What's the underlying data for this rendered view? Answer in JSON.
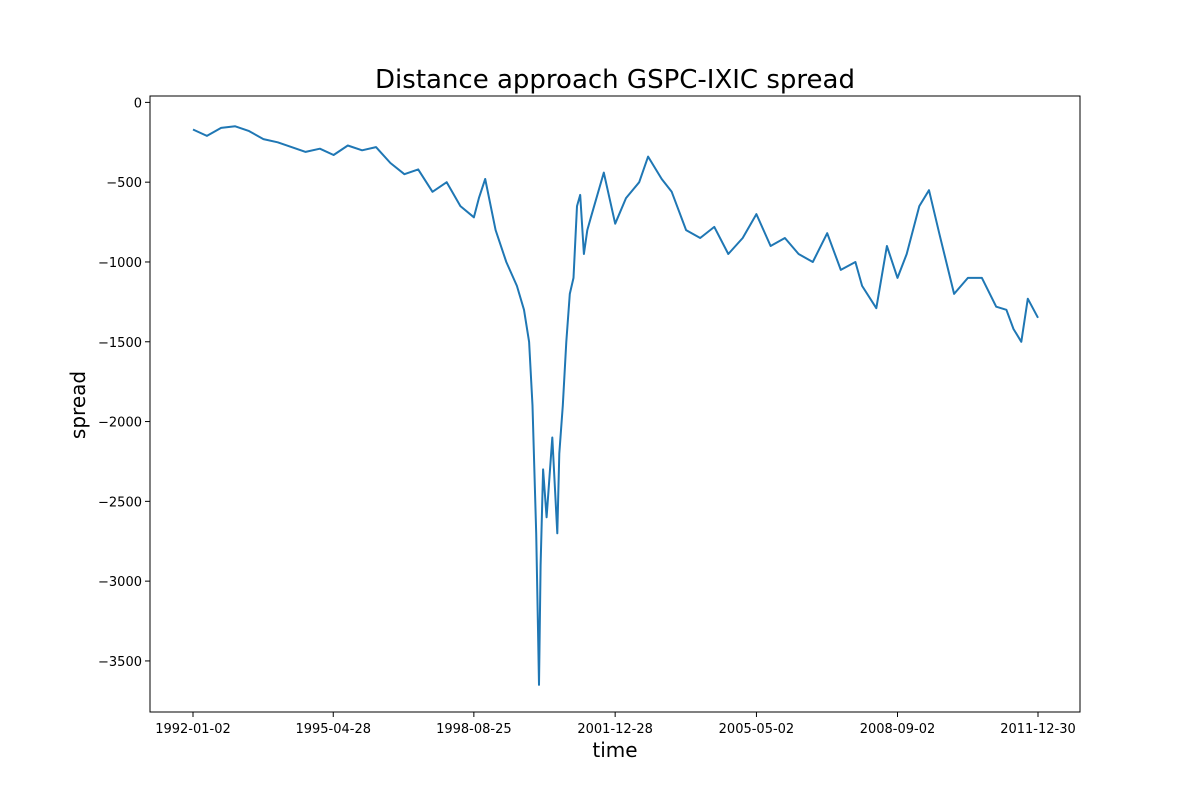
{
  "chart_data": {
    "type": "line",
    "title": "Distance approach GSPC-IXIC spread",
    "xlabel": "time",
    "ylabel": "spread",
    "x_ticks": [
      "1992-01-02",
      "1995-04-28",
      "1998-08-25",
      "2001-12-28",
      "2005-05-02",
      "2008-09-02",
      "2011-12-30"
    ],
    "y_ticks": [
      0,
      -500,
      -1000,
      -1500,
      -2000,
      -2500,
      -3000,
      -3500
    ],
    "y_tick_labels": [
      "0",
      "−500",
      "−1000",
      "−1500",
      "−2000",
      "−2500",
      "−3000",
      "−3500"
    ],
    "xlim": [
      "1992-01-02",
      "2011-12-30"
    ],
    "ylim": [
      -3820,
      40
    ],
    "grid": false,
    "series": [
      {
        "color": "#1f77b4",
        "x": [
          "1992-01-02",
          "1992-05-01",
          "1992-09-01",
          "1993-01-01",
          "1993-05-01",
          "1993-09-01",
          "1994-01-03",
          "1994-05-02",
          "1994-09-01",
          "1995-01-03",
          "1995-05-01",
          "1995-09-01",
          "1996-01-02",
          "1996-05-01",
          "1996-09-03",
          "1997-01-02",
          "1997-05-01",
          "1997-09-02",
          "1998-01-02",
          "1998-05-01",
          "1998-08-25",
          "1998-10-08",
          "1998-12-01",
          "1999-03-01",
          "1999-06-01",
          "1999-09-01",
          "1999-11-01",
          "1999-12-15",
          "2000-01-14",
          "2000-02-15",
          "2000-03-01",
          "2000-03-10",
          "2000-03-24",
          "2000-04-14",
          "2000-05-15",
          "2000-07-03",
          "2000-08-15",
          "2000-09-01",
          "2000-10-02",
          "2000-11-01",
          "2000-12-01",
          "2001-01-02",
          "2001-02-01",
          "2001-03-01",
          "2001-04-02",
          "2001-05-01",
          "2001-06-01",
          "2001-09-21",
          "2001-12-28",
          "2002-04-01",
          "2002-07-24",
          "2002-10-09",
          "2003-02-03",
          "2003-05-01",
          "2003-09-02",
          "2004-01-02",
          "2004-05-03",
          "2004-09-01",
          "2005-01-03",
          "2005-05-02",
          "2005-09-01",
          "2006-01-03",
          "2006-05-01",
          "2006-09-01",
          "2007-01-03",
          "2007-05-01",
          "2007-09-04",
          "2007-11-01",
          "2008-03-03",
          "2008-06-02",
          "2008-09-02",
          "2008-11-20",
          "2009-03-09",
          "2009-06-01",
          "2009-09-01",
          "2010-01-04",
          "2010-05-03",
          "2010-09-01",
          "2011-01-03",
          "2011-04-01",
          "2011-06-01",
          "2011-08-08",
          "2011-10-03",
          "2011-12-30"
        ],
        "values": [
          -170,
          -210,
          -160,
          -150,
          -180,
          -230,
          -250,
          -280,
          -310,
          -290,
          -330,
          -270,
          -300,
          -280,
          -380,
          -450,
          -420,
          -560,
          -500,
          -650,
          -720,
          -600,
          -480,
          -800,
          -1000,
          -1150,
          -1300,
          -1500,
          -1900,
          -2700,
          -3300,
          -3650,
          -2900,
          -2300,
          -2600,
          -2100,
          -2700,
          -2200,
          -1900,
          -1500,
          -1200,
          -1100,
          -650,
          -580,
          -950,
          -800,
          -720,
          -440,
          -760,
          -600,
          -500,
          -340,
          -480,
          -560,
          -800,
          -850,
          -780,
          -950,
          -850,
          -700,
          -900,
          -850,
          -950,
          -1000,
          -820,
          -1050,
          -1000,
          -1150,
          -1290,
          -900,
          -1100,
          -950,
          -650,
          -550,
          -830,
          -1200,
          -1100,
          -1100,
          -1280,
          -1300,
          -1420,
          -1500,
          -1230,
          -1350
        ]
      }
    ]
  }
}
